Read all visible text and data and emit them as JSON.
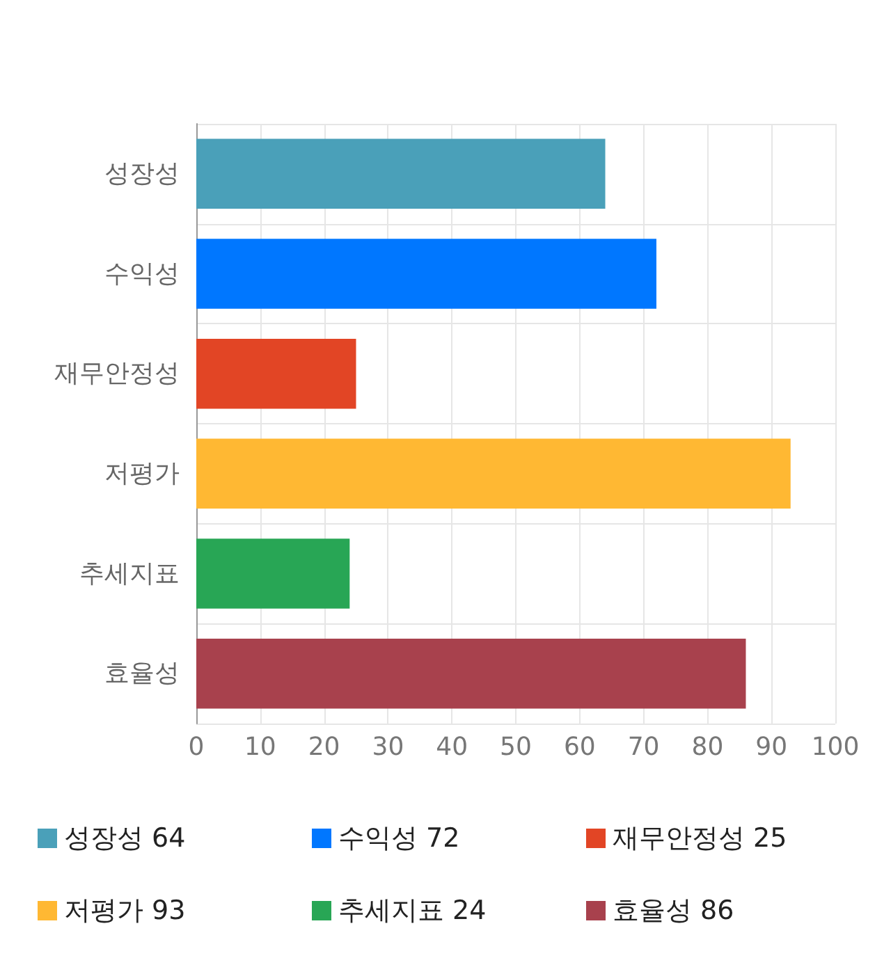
{
  "chart_data": {
    "type": "bar",
    "orientation": "horizontal",
    "categories": [
      "성장성",
      "수익성",
      "재무안정성",
      "저평가",
      "추세지표",
      "효율성"
    ],
    "series": [
      {
        "name": "성장성 64",
        "color": "#4aa0b9",
        "values": [
          64,
          null,
          null,
          null,
          null,
          null
        ]
      },
      {
        "name": "수익성 72",
        "color": "#0077ff",
        "values": [
          null,
          72,
          null,
          null,
          null,
          null
        ]
      },
      {
        "name": "재무안정성 25",
        "color": "#e24525",
        "values": [
          null,
          null,
          25,
          null,
          null,
          null
        ]
      },
      {
        "name": "저평가 93",
        "color": "#ffb833",
        "values": [
          null,
          null,
          null,
          93,
          null,
          null
        ]
      },
      {
        "name": "추세지표 24",
        "color": "#28a655",
        "values": [
          null,
          null,
          null,
          null,
          24,
          null
        ]
      },
      {
        "name": "효율성 86",
        "color": "#a8414d",
        "values": [
          null,
          null,
          null,
          null,
          null,
          86
        ]
      }
    ],
    "xlim": [
      0,
      100
    ],
    "xticks": [
      0,
      10,
      20,
      30,
      40,
      50,
      60,
      70,
      80,
      90,
      100
    ],
    "grid": true,
    "legend": "bottom"
  }
}
